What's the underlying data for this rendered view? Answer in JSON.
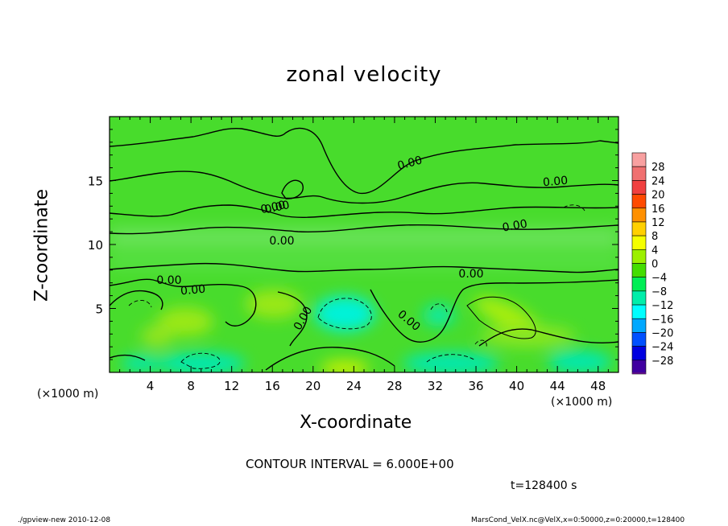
{
  "chart_data": {
    "type": "heatmap",
    "title": "zonal velocity",
    "xlabel": "X-coordinate",
    "ylabel": "Z-coordinate",
    "x_unit_label": "(×1000 m)",
    "xlim": [
      0,
      50
    ],
    "ylim": [
      0,
      20
    ],
    "xticks": [
      "4",
      "8",
      "12",
      "16",
      "20",
      "24",
      "28",
      "32",
      "36",
      "40",
      "44",
      "48"
    ],
    "yticks": [
      "5",
      "10",
      "15"
    ],
    "colorbar": {
      "levels": [
        {
          "label": "28",
          "color": "#f07070"
        },
        {
          "label": "24",
          "color": "#f04040"
        },
        {
          "label": "20",
          "color": "#ff4a00"
        },
        {
          "label": "16",
          "color": "#ff9000"
        },
        {
          "label": "12",
          "color": "#ffd000"
        },
        {
          "label": "8",
          "color": "#f5ff00"
        },
        {
          "label": "4",
          "color": "#9cf000"
        },
        {
          "label": "0",
          "color": "#44dd00"
        },
        {
          "label": "−4",
          "color": "#00ee55"
        },
        {
          "label": "−8",
          "color": "#00eeaa"
        },
        {
          "label": "−12",
          "color": "#00ffff"
        },
        {
          "label": "−16",
          "color": "#00a8ff"
        },
        {
          "label": "−20",
          "color": "#0050ff"
        },
        {
          "label": "−24",
          "color": "#0000e0"
        },
        {
          "label": "−28",
          "color": "#4000a0"
        }
      ],
      "top_color": "#f8a0a0",
      "bottom_color": "#5a1080"
    },
    "contour_labels": [
      "0.00",
      "0.00",
      "0.00",
      "0.00",
      "0.00",
      "0.00",
      "0.00",
      "0.00",
      "0.00",
      "0.00",
      "0.00"
    ],
    "contour_interval_text": "CONTOUR INTERVAL = 6.000E+00",
    "background_color": "#48dc2c"
  },
  "time_label": "t=128400 s",
  "footer_left": "./gpview-new  2010-12-08",
  "footer_right": "MarsCond_VelX.nc@VelX,x=0:50000,z=0:20000,t=128400"
}
